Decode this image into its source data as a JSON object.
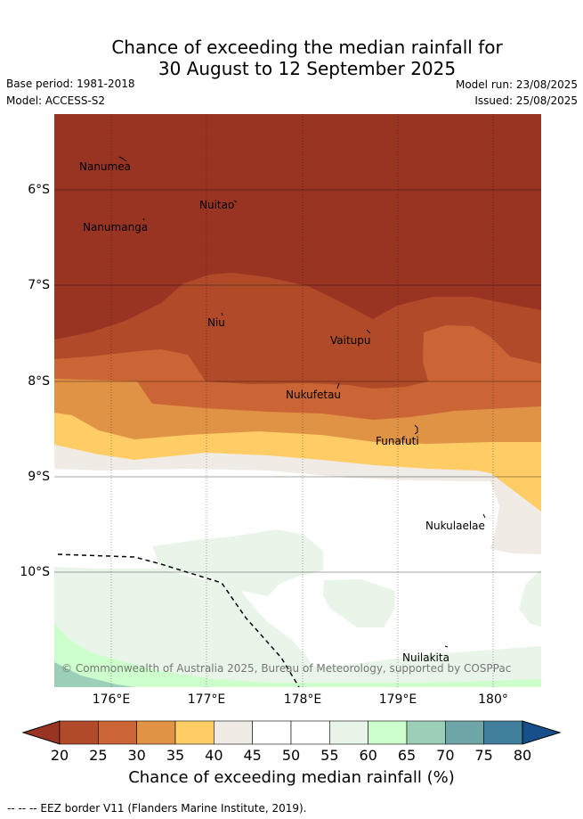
{
  "title_line1": "Chance of exceeding the median rainfall for",
  "title_line2": "30 August to 12 September 2025",
  "meta": {
    "base_period": "Base period: 1981-2018",
    "model": "Model: ACCESS-S2",
    "model_run": "Model run: 23/08/2025",
    "issued": "Issued: 25/08/2025"
  },
  "axes": {
    "lat_ticks": [
      "6°S",
      "7°S",
      "8°S",
      "9°S",
      "10°S"
    ],
    "lon_ticks": [
      "176°E",
      "177°E",
      "178°E",
      "179°E",
      "180°"
    ]
  },
  "islands": [
    "Nanumea",
    "Nuitao",
    "Nanumanga",
    "Niu",
    "Vaitupu",
    "Nukufetau",
    "Funafuti",
    "Nukulaelae",
    "Nuilakita"
  ],
  "copyright": "© Commonwealth of Australia 2025, Bureau of Meteorology, supported by COSPPac",
  "colorbar": {
    "title": "Chance of exceeding median rainfall (%)",
    "ticks": [
      "20",
      "25",
      "30",
      "35",
      "40",
      "45",
      "50",
      "55",
      "60",
      "65",
      "70",
      "75",
      "80"
    ],
    "colors": [
      "#993322",
      "#b04a28",
      "#cb6535",
      "#e09245",
      "#ffcc66",
      "#f0ebe5",
      "#ffffff",
      "#ffffff",
      "#e9f5e8",
      "#ccffcc",
      "#9ccfb8",
      "#6ea6a8",
      "#407f9c",
      "#174f8a"
    ]
  },
  "footer": "--  --  -- EEZ border V11 (Flanders Marine Institute, 2019)."
}
